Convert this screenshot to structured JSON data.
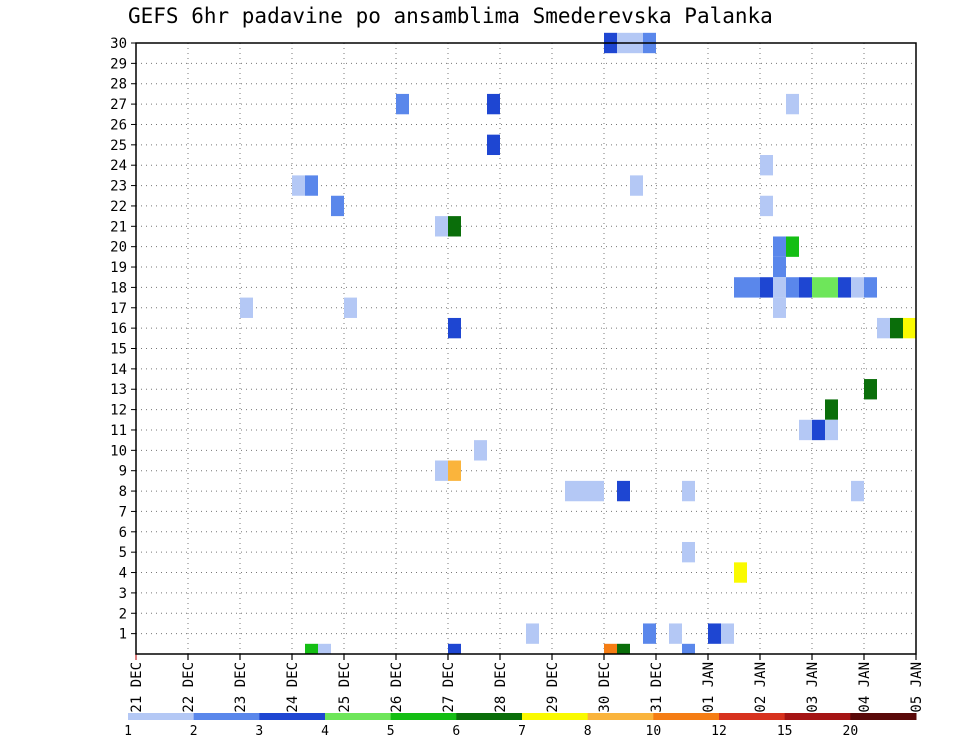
{
  "chart_data": {
    "type": "heatmap",
    "title": "GEFS 6hr padavine po ansamblima Smederevska Palanka",
    "xlabel": "",
    "ylabel": "",
    "x_ticks": [
      "21 DEC",
      "22 DEC",
      "23 DEC",
      "24 DEC",
      "25 DEC",
      "26 DEC",
      "27 DEC",
      "28 DEC",
      "29 DEC",
      "30 DEC",
      "31 DEC",
      "01 JAN",
      "02 JAN",
      "03 JAN",
      "04 JAN",
      "05 JAN"
    ],
    "y_ticks": [
      1,
      2,
      3,
      4,
      5,
      6,
      7,
      8,
      9,
      10,
      11,
      12,
      13,
      14,
      15,
      16,
      17,
      18,
      19,
      20,
      21,
      22,
      23,
      24,
      25,
      26,
      27,
      28,
      29,
      30
    ],
    "x_range_days": [
      0,
      15
    ],
    "y_range": [
      0,
      30
    ],
    "grid": true,
    "colorbar": {
      "labels": [
        "1",
        "2",
        "3",
        "4",
        "5",
        "6",
        "7",
        "8",
        "10",
        "12",
        "15",
        "20"
      ],
      "colors": [
        "#b4c8f5",
        "#5a87eb",
        "#1e46d2",
        "#6ee65a",
        "#14be14",
        "#0a6e0a",
        "#fafa00",
        "#fab43c",
        "#f57d14",
        "#d7321e",
        "#a51414",
        "#5a0a0a"
      ]
    },
    "cells_note": "each cell: [day_offset_from_21DEC_in_days, member_row, color_index]",
    "cells": [
      [
        9.0,
        30,
        2
      ],
      [
        9.25,
        30,
        0
      ],
      [
        9.5,
        30,
        0
      ],
      [
        9.75,
        30,
        1
      ],
      [
        5.0,
        27,
        1
      ],
      [
        6.75,
        27,
        2
      ],
      [
        12.5,
        27,
        0
      ],
      [
        6.75,
        25,
        2
      ],
      [
        12.0,
        24,
        0
      ],
      [
        3.0,
        23,
        0
      ],
      [
        3.25,
        23,
        1
      ],
      [
        9.5,
        23,
        0
      ],
      [
        3.75,
        22,
        1
      ],
      [
        12.0,
        22,
        0
      ],
      [
        5.75,
        21,
        0
      ],
      [
        6.0,
        21,
        5
      ],
      [
        12.25,
        20,
        1
      ],
      [
        12.5,
        20,
        4
      ],
      [
        12.25,
        19,
        1
      ],
      [
        11.5,
        18,
        1
      ],
      [
        11.75,
        18,
        1
      ],
      [
        12.0,
        18,
        2
      ],
      [
        12.25,
        18,
        0
      ],
      [
        12.5,
        18,
        1
      ],
      [
        12.75,
        18,
        2
      ],
      [
        13.0,
        18,
        3
      ],
      [
        13.25,
        18,
        3
      ],
      [
        13.5,
        18,
        2
      ],
      [
        13.75,
        18,
        0
      ],
      [
        14.0,
        18,
        1
      ],
      [
        2.0,
        17,
        0
      ],
      [
        4.0,
        17,
        0
      ],
      [
        12.25,
        17,
        0
      ],
      [
        6.0,
        16,
        2
      ],
      [
        14.25,
        16,
        0
      ],
      [
        14.5,
        16,
        5
      ],
      [
        14.75,
        16,
        6
      ],
      [
        14.0,
        13,
        5
      ],
      [
        13.25,
        12,
        5
      ],
      [
        12.75,
        11,
        0
      ],
      [
        13.0,
        11,
        2
      ],
      [
        13.25,
        11,
        0
      ],
      [
        6.5,
        10,
        0
      ],
      [
        5.75,
        9,
        0
      ],
      [
        6.0,
        9,
        7
      ],
      [
        8.25,
        8,
        0
      ],
      [
        8.5,
        8,
        0
      ],
      [
        8.75,
        8,
        0
      ],
      [
        9.25,
        8,
        2
      ],
      [
        10.5,
        8,
        0
      ],
      [
        13.75,
        8,
        0
      ],
      [
        10.5,
        5,
        0
      ],
      [
        11.5,
        4,
        6
      ],
      [
        7.5,
        1,
        0
      ],
      [
        9.75,
        1,
        1
      ],
      [
        10.25,
        1,
        0
      ],
      [
        11.0,
        1,
        2
      ],
      [
        11.25,
        1,
        0
      ],
      [
        3.25,
        0,
        4
      ],
      [
        3.5,
        0,
        0
      ],
      [
        6.0,
        0,
        2
      ],
      [
        9.0,
        0,
        8
      ],
      [
        9.25,
        0,
        5
      ],
      [
        10.5,
        0,
        1
      ]
    ]
  }
}
